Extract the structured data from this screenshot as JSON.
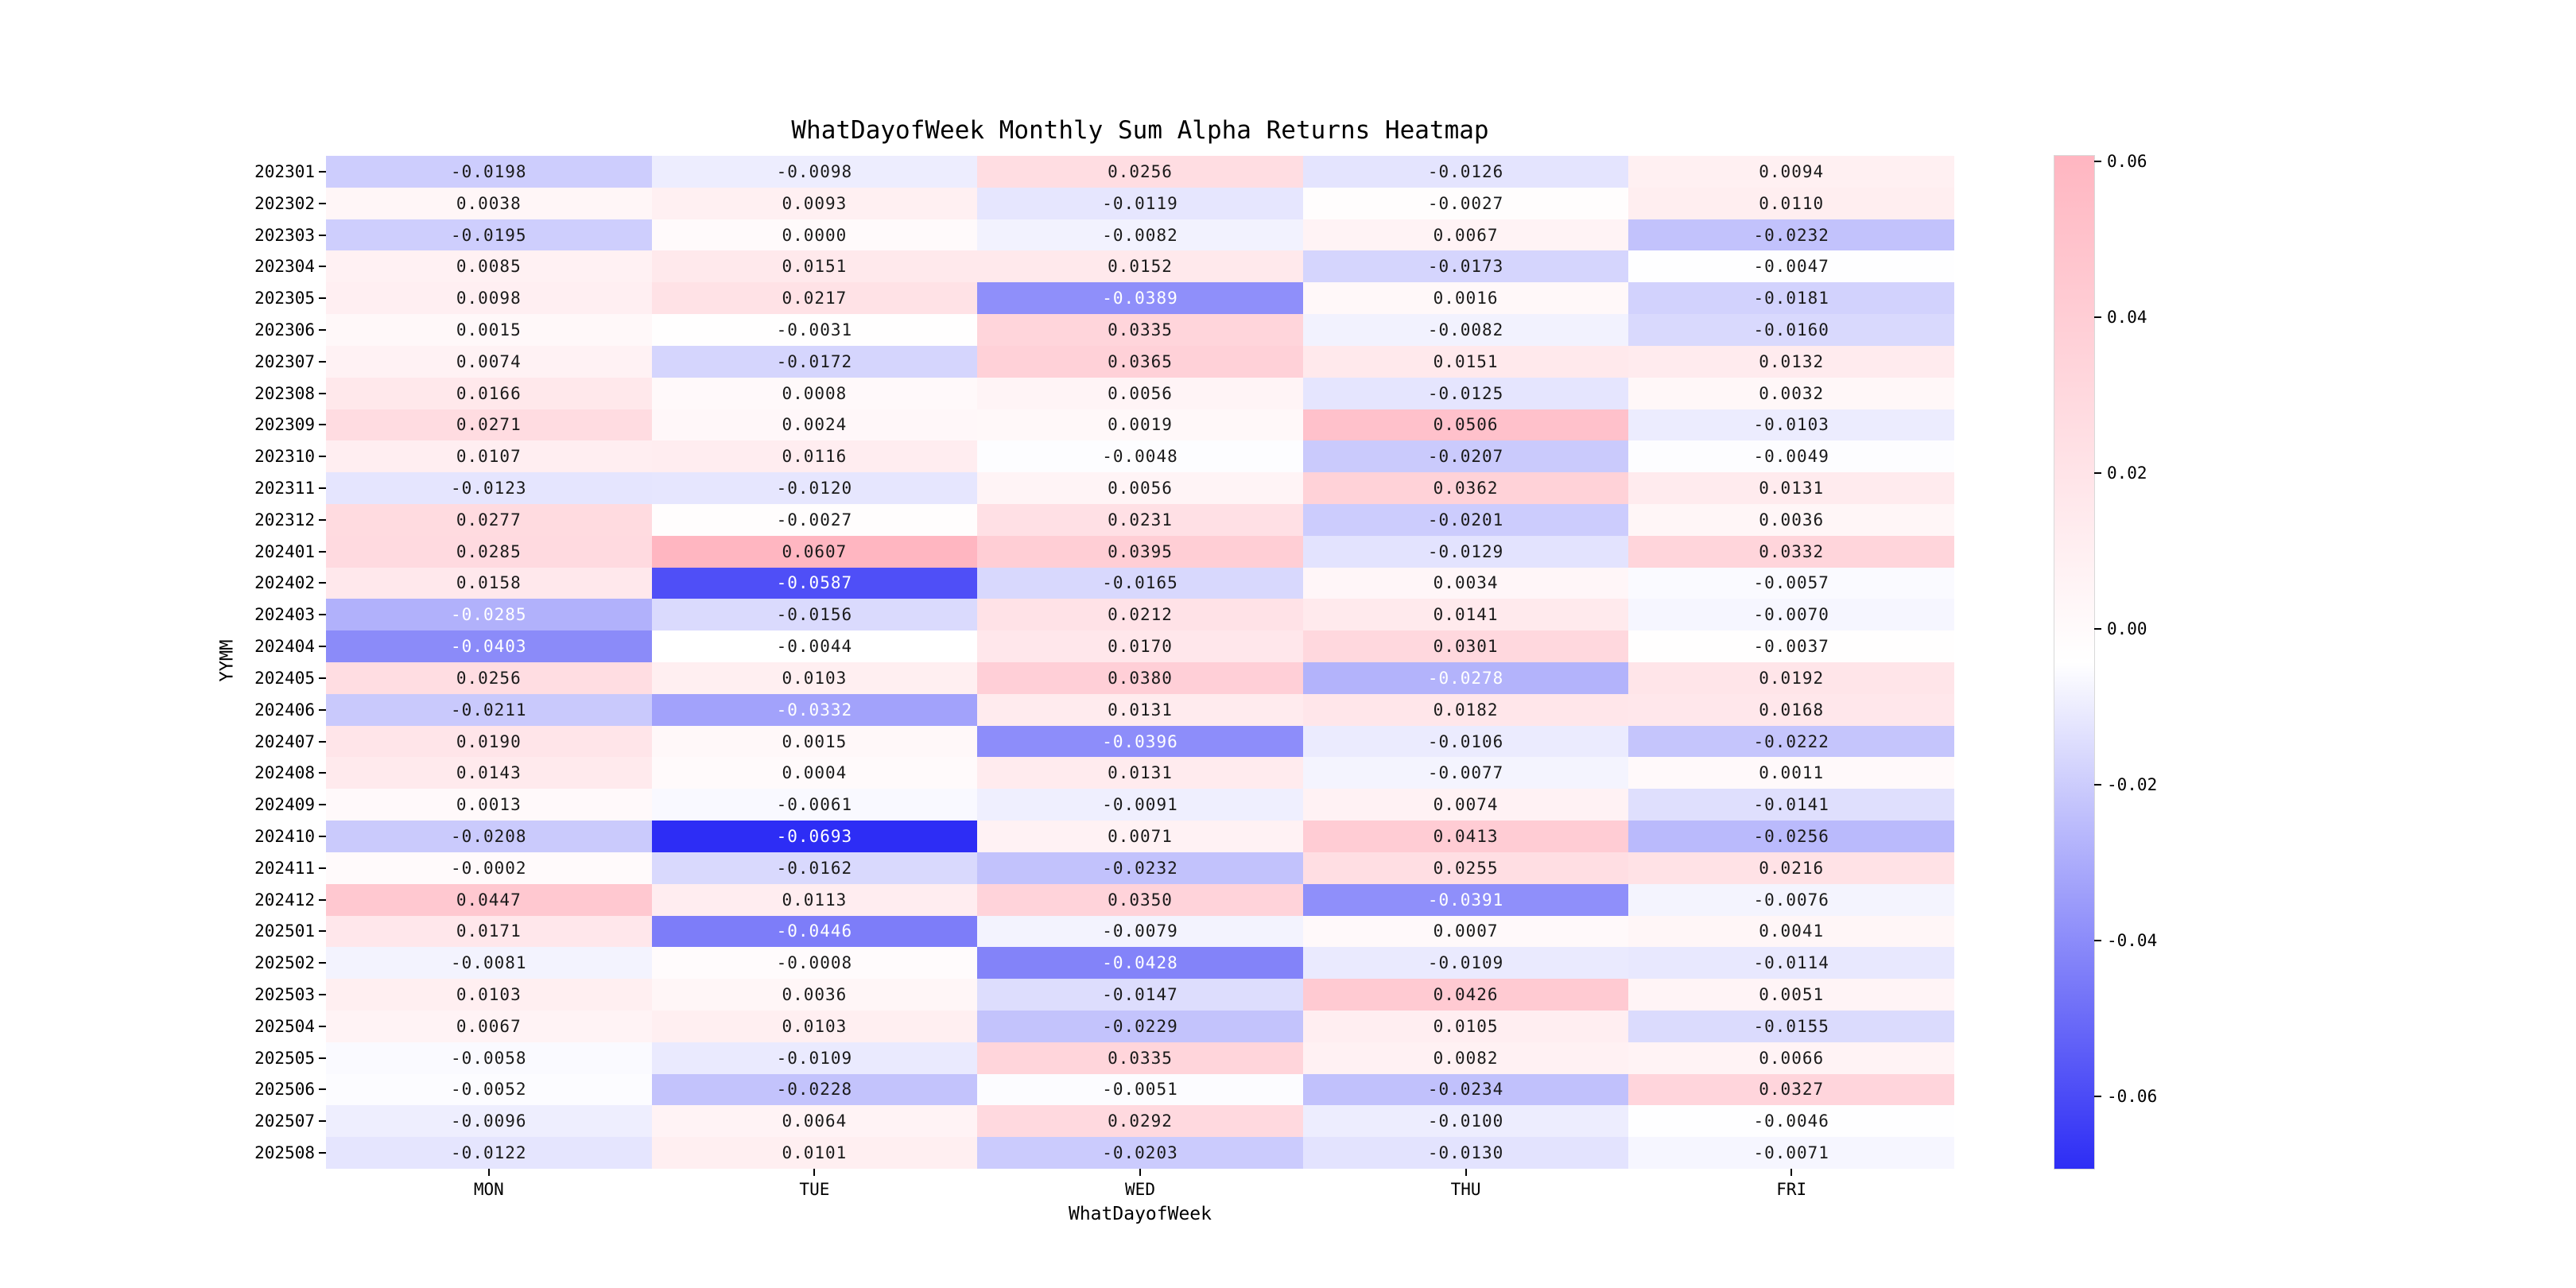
{
  "title": "WhatDayofWeek Monthly Sum Alpha Returns Heatmap",
  "xlabel": "WhatDayofWeek",
  "ylabel": "YYMM",
  "chart_data": {
    "type": "heatmap",
    "columns": [
      "MON",
      "TUE",
      "WED",
      "THU",
      "FRI"
    ],
    "rows": [
      "202301",
      "202302",
      "202303",
      "202304",
      "202305",
      "202306",
      "202307",
      "202308",
      "202309",
      "202310",
      "202311",
      "202312",
      "202401",
      "202402",
      "202403",
      "202404",
      "202405",
      "202406",
      "202407",
      "202408",
      "202409",
      "202410",
      "202411",
      "202412",
      "202501",
      "202502",
      "202503",
      "202504",
      "202505",
      "202506",
      "202507",
      "202508"
    ],
    "values": [
      [
        -0.0198,
        -0.0098,
        0.0256,
        -0.0126,
        0.0094
      ],
      [
        0.0038,
        0.0093,
        -0.0119,
        -0.0027,
        0.011
      ],
      [
        -0.0195,
        0.0,
        -0.0082,
        0.0067,
        -0.0232
      ],
      [
        0.0085,
        0.0151,
        0.0152,
        -0.0173,
        -0.0047
      ],
      [
        0.0098,
        0.0217,
        -0.0389,
        0.0016,
        -0.0181
      ],
      [
        0.0015,
        -0.0031,
        0.0335,
        -0.0082,
        -0.016
      ],
      [
        0.0074,
        -0.0172,
        0.0365,
        0.0151,
        0.0132
      ],
      [
        0.0166,
        0.0008,
        0.0056,
        -0.0125,
        0.0032
      ],
      [
        0.0271,
        0.0024,
        0.0019,
        0.0506,
        -0.0103
      ],
      [
        0.0107,
        0.0116,
        -0.0048,
        -0.0207,
        -0.0049
      ],
      [
        -0.0123,
        -0.012,
        0.0056,
        0.0362,
        0.0131
      ],
      [
        0.0277,
        -0.0027,
        0.0231,
        -0.0201,
        0.0036
      ],
      [
        0.0285,
        0.0607,
        0.0395,
        -0.0129,
        0.0332
      ],
      [
        0.0158,
        -0.0587,
        -0.0165,
        0.0034,
        -0.0057
      ],
      [
        -0.0285,
        -0.0156,
        0.0212,
        0.0141,
        -0.007
      ],
      [
        -0.0403,
        -0.0044,
        0.017,
        0.0301,
        -0.0037
      ],
      [
        0.0256,
        0.0103,
        0.038,
        -0.0278,
        0.0192
      ],
      [
        -0.0211,
        -0.0332,
        0.0131,
        0.0182,
        0.0168
      ],
      [
        0.019,
        0.0015,
        -0.0396,
        -0.0106,
        -0.0222
      ],
      [
        0.0143,
        0.0004,
        0.0131,
        -0.0077,
        0.0011
      ],
      [
        0.0013,
        -0.0061,
        -0.0091,
        0.0074,
        -0.0141
      ],
      [
        -0.0208,
        -0.0693,
        0.0071,
        0.0413,
        -0.0256
      ],
      [
        -0.0002,
        -0.0162,
        -0.0232,
        0.0255,
        0.0216
      ],
      [
        0.0447,
        0.0113,
        0.035,
        -0.0391,
        -0.0076
      ],
      [
        0.0171,
        -0.0446,
        -0.0079,
        0.0007,
        0.0041
      ],
      [
        -0.0081,
        -0.0008,
        -0.0428,
        -0.0109,
        -0.0114
      ],
      [
        0.0103,
        0.0036,
        -0.0147,
        0.0426,
        0.0051
      ],
      [
        0.0067,
        0.0103,
        -0.0229,
        0.0105,
        -0.0155
      ],
      [
        -0.0058,
        -0.0109,
        0.0335,
        0.0082,
        0.0066
      ],
      [
        -0.0052,
        -0.0228,
        -0.0051,
        -0.0234,
        0.0327
      ],
      [
        -0.0096,
        0.0064,
        0.0292,
        -0.01,
        -0.0046
      ],
      [
        -0.0122,
        0.0101,
        -0.0203,
        -0.013,
        -0.0071
      ]
    ],
    "vmin": -0.0693,
    "vmax": 0.0607,
    "value_decimals": 4,
    "colorbar_ticks": [
      0.06,
      0.04,
      0.02,
      0.0,
      -0.02,
      -0.04,
      -0.06
    ],
    "colorbar_tick_decimals": 2,
    "legend_position": "right",
    "grid": false,
    "colormap": {
      "negative_end": "#2d2df5",
      "center": "#ffffff",
      "positive_end": "#ffb6c1"
    },
    "text_colors": {
      "dark": "#1a1a1a",
      "light": "#ffffff"
    }
  }
}
